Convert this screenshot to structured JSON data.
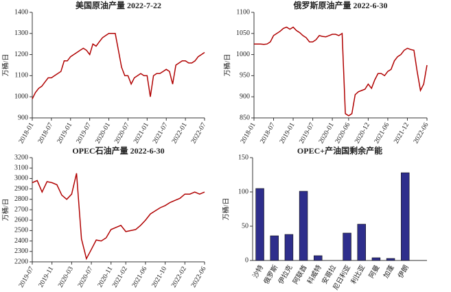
{
  "chart_data": [
    {
      "type": "line",
      "title": "美国原油产量 2022-7-22",
      "ylabel": "万桶/日",
      "color": "#b00000",
      "x": [
        "2018-01",
        "2018-02",
        "2018-03",
        "2018-04",
        "2018-05",
        "2018-06",
        "2018-07",
        "2018-08",
        "2018-09",
        "2018-10",
        "2018-11",
        "2018-12",
        "2019-01",
        "2019-02",
        "2019-03",
        "2019-04",
        "2019-05",
        "2019-06",
        "2019-07",
        "2019-08",
        "2019-09",
        "2019-10",
        "2019-11",
        "2019-12",
        "2020-01",
        "2020-02",
        "2020-03",
        "2020-04",
        "2020-05",
        "2020-06",
        "2020-07",
        "2020-08",
        "2020-09",
        "2020-10",
        "2020-11",
        "2020-12",
        "2021-01",
        "2021-02",
        "2021-03",
        "2021-04",
        "2021-05",
        "2021-06",
        "2021-07",
        "2021-08",
        "2021-09",
        "2021-10",
        "2021-11",
        "2021-12",
        "2022-01",
        "2022-02",
        "2022-03",
        "2022-04",
        "2022-05",
        "2022-06",
        "2022-07"
      ],
      "values": [
        990,
        1020,
        1040,
        1050,
        1070,
        1090,
        1090,
        1100,
        1110,
        1120,
        1170,
        1170,
        1190,
        1200,
        1210,
        1220,
        1230,
        1220,
        1200,
        1250,
        1240,
        1260,
        1280,
        1290,
        1300,
        1300,
        1300,
        1220,
        1140,
        1100,
        1100,
        1060,
        1090,
        1100,
        1110,
        1100,
        1100,
        1000,
        1100,
        1110,
        1110,
        1120,
        1130,
        1120,
        1060,
        1150,
        1160,
        1170,
        1170,
        1160,
        1160,
        1170,
        1190,
        1200,
        1210
      ],
      "xticks": [
        "2018-01",
        "2018-07",
        "2019-01",
        "2019-07",
        "2020-01",
        "2020-07",
        "2021-01",
        "2021-07",
        "2022-01",
        "2022-07"
      ],
      "ylim": [
        900,
        1400
      ],
      "yticks": [
        900,
        1000,
        1100,
        1200,
        1300,
        1400
      ]
    },
    {
      "type": "line",
      "title": "俄罗斯原油产量 2022-6-30",
      "ylabel": "万桶/日",
      "color": "#b00000",
      "x": [
        "2018-01",
        "2018-02",
        "2018-03",
        "2018-04",
        "2018-05",
        "2018-06",
        "2018-07",
        "2018-08",
        "2018-09",
        "2018-10",
        "2018-11",
        "2018-12",
        "2019-01",
        "2019-02",
        "2019-03",
        "2019-04",
        "2019-05",
        "2019-06",
        "2019-07",
        "2019-08",
        "2019-09",
        "2019-10",
        "2019-11",
        "2019-12",
        "2020-01",
        "2020-02",
        "2020-03",
        "2020-04",
        "2020-05",
        "2020-06",
        "2020-07",
        "2020-08",
        "2020-09",
        "2020-10",
        "2020-11",
        "2020-12",
        "2021-01",
        "2021-02",
        "2021-03",
        "2021-04",
        "2021-05",
        "2021-06",
        "2021-07",
        "2021-08",
        "2021-09",
        "2021-10",
        "2021-11",
        "2021-12",
        "2022-01",
        "2022-02",
        "2022-03",
        "2022-04",
        "2022-05",
        "2022-06"
      ],
      "values": [
        1025,
        1025,
        1025,
        1024,
        1025,
        1030,
        1045,
        1050,
        1055,
        1062,
        1065,
        1060,
        1065,
        1057,
        1052,
        1045,
        1040,
        1030,
        1030,
        1035,
        1045,
        1043,
        1042,
        1045,
        1048,
        1048,
        1045,
        1050,
        860,
        855,
        860,
        905,
        912,
        915,
        918,
        930,
        920,
        940,
        955,
        955,
        950,
        960,
        965,
        985,
        995,
        1000,
        1010,
        1015,
        1012,
        1010,
        960,
        915,
        930,
        975
      ],
      "xticks": [
        "2018-01",
        "2018-07",
        "2019-01",
        "2019-07",
        "2020-01",
        "2020-06",
        "2020-12",
        "2021-06",
        "2021-12",
        "2022-06"
      ],
      "ylim": [
        850,
        1100
      ],
      "yticks": [
        850,
        900,
        950,
        1000,
        1050,
        1100
      ]
    },
    {
      "type": "line",
      "title": "OPEC石油产量 2022-6-30",
      "ylabel": "万桶/日",
      "color": "#b00000",
      "x": [
        "2019-07",
        "2019-08",
        "2019-09",
        "2019-10",
        "2019-11",
        "2019-12",
        "2020-01",
        "2020-02",
        "2020-03",
        "2020-04",
        "2020-05",
        "2020-06",
        "2020-07",
        "2020-08",
        "2020-09",
        "2020-10",
        "2020-11",
        "2020-12",
        "2021-01",
        "2021-02",
        "2021-03",
        "2021-04",
        "2021-05",
        "2021-06",
        "2021-07",
        "2021-08",
        "2021-09",
        "2021-10",
        "2021-11",
        "2021-12",
        "2022-01",
        "2022-02",
        "2022-03",
        "2022-04",
        "2022-05",
        "2022-06"
      ],
      "values": [
        2960,
        2980,
        2870,
        2970,
        2960,
        2940,
        2840,
        2800,
        2850,
        3050,
        2420,
        2230,
        2320,
        2410,
        2400,
        2430,
        2510,
        2530,
        2550,
        2490,
        2500,
        2510,
        2550,
        2600,
        2660,
        2690,
        2720,
        2740,
        2770,
        2790,
        2810,
        2850,
        2850,
        2870,
        2850,
        2870
      ],
      "xticks": [
        "2019-07",
        "2019-11",
        "2020-03",
        "2020-07",
        "2020-11",
        "2021-02",
        "2021-06",
        "2021-10",
        "2022-02",
        "2022-06"
      ],
      "ylim": [
        2200,
        3200
      ],
      "yticks": [
        2200,
        2300,
        2400,
        2500,
        2600,
        2700,
        2800,
        2900,
        3000,
        3100,
        3200
      ]
    },
    {
      "type": "bar",
      "title": "OPEC+产油国剩余产能",
      "ylabel": "万桶/日",
      "color": "#2e2e8c",
      "categories": [
        "沙特",
        "俄罗斯",
        "伊拉克",
        "阿联酋",
        "科威特",
        "安哥拉",
        "尼日利亚",
        "利比亚",
        "阿曼",
        "加蓬",
        "伊朗"
      ],
      "values": [
        105,
        36,
        38,
        101,
        7,
        0,
        40,
        53,
        4,
        3,
        128
      ],
      "ylim": [
        0,
        150
      ],
      "yticks": [
        0,
        50,
        100,
        150
      ]
    }
  ]
}
